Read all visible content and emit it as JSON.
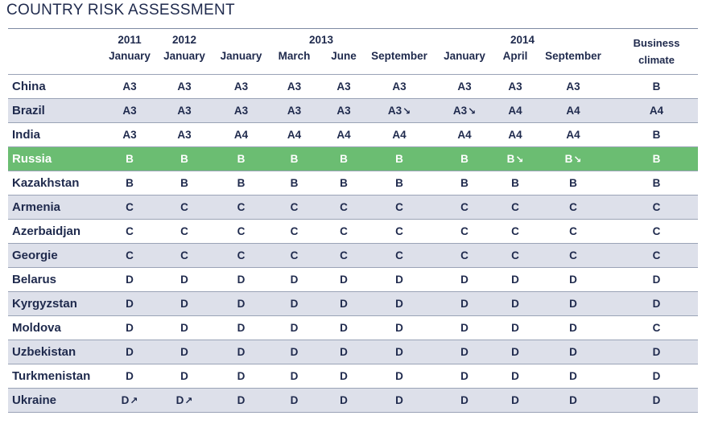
{
  "title": "COUNTRY RISK ASSESSMENT",
  "colors": {
    "header_text": "#1f2a4d",
    "shade": "#dde0ea",
    "highlight": "#6bbd72"
  },
  "header": {
    "years": [
      "2011",
      "2012",
      "2013",
      "2014"
    ],
    "months": [
      "January",
      "January",
      "January",
      "March",
      "June",
      "September",
      "January",
      "April",
      "September"
    ],
    "business_line1": "Business",
    "business_line2": "climate"
  },
  "rows": [
    {
      "country": "China",
      "ratings": [
        "A3",
        "A3",
        "A3",
        "A3",
        "A3",
        "A3",
        "A3",
        "A3",
        "A3",
        "B"
      ]
    },
    {
      "country": "Brazil",
      "ratings": [
        "A3",
        "A3",
        "A3",
        "A3",
        "A3",
        "A3 ↘",
        "A3 ↘",
        "A4",
        "A4",
        "A4"
      ]
    },
    {
      "country": "India",
      "ratings": [
        "A3",
        "A3",
        "A4",
        "A4",
        "A4",
        "A4",
        "A4",
        "A4",
        "A4",
        "B"
      ]
    },
    {
      "country": "Russia",
      "ratings": [
        "B",
        "B",
        "B",
        "B",
        "B",
        "B",
        "B",
        "B ↘",
        "B ↘",
        "B"
      ]
    },
    {
      "country": "Kazakhstan",
      "ratings": [
        "B",
        "B",
        "B",
        "B",
        "B",
        "B",
        "B",
        "B",
        "B",
        "B"
      ]
    },
    {
      "country": "Armenia",
      "ratings": [
        "C",
        "C",
        "C",
        "C",
        "C",
        "C",
        "C",
        "C",
        "C",
        "C"
      ]
    },
    {
      "country": "Azerbaidjan",
      "ratings": [
        "C",
        "C",
        "C",
        "C",
        "C",
        "C",
        "C",
        "C",
        "C",
        "C"
      ]
    },
    {
      "country": "Georgie",
      "ratings": [
        "C",
        "C",
        "C",
        "C",
        "C",
        "C",
        "C",
        "C",
        "C",
        "C"
      ]
    },
    {
      "country": "Belarus",
      "ratings": [
        "D",
        "D",
        "D",
        "D",
        "D",
        "D",
        "D",
        "D",
        "D",
        "D"
      ]
    },
    {
      "country": "Kyrgyzstan",
      "ratings": [
        "D",
        "D",
        "D",
        "D",
        "D",
        "D",
        "D",
        "D",
        "D",
        "D"
      ]
    },
    {
      "country": "Moldova",
      "ratings": [
        "D",
        "D",
        "D",
        "D",
        "D",
        "D",
        "D",
        "D",
        "D",
        "C"
      ]
    },
    {
      "country": "Uzbekistan",
      "ratings": [
        "D",
        "D",
        "D",
        "D",
        "D",
        "D",
        "D",
        "D",
        "D",
        "D"
      ]
    },
    {
      "country": "Turkmenistan",
      "ratings": [
        "D",
        "D",
        "D",
        "D",
        "D",
        "D",
        "D",
        "D",
        "D",
        "D"
      ]
    },
    {
      "country": "Ukraine",
      "ratings": [
        "D ↗",
        "D ↗",
        "D",
        "D",
        "D",
        "D",
        "D",
        "D",
        "D",
        "D"
      ]
    }
  ]
}
